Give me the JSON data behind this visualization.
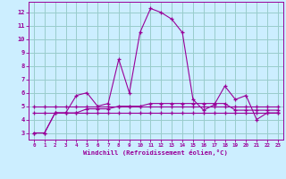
{
  "xlabel": "Windchill (Refroidissement éolien,°C)",
  "bg_color": "#cceeff",
  "grid_color": "#99cccc",
  "line_color": "#990099",
  "x_values": [
    0,
    1,
    2,
    3,
    4,
    5,
    6,
    7,
    8,
    9,
    10,
    11,
    12,
    13,
    14,
    15,
    16,
    17,
    18,
    19,
    20,
    21,
    22,
    23
  ],
  "y_series1": [
    3.0,
    3.0,
    4.5,
    4.5,
    5.8,
    6.0,
    5.0,
    5.2,
    8.5,
    6.0,
    10.5,
    12.3,
    12.0,
    11.5,
    10.5,
    5.5,
    4.7,
    5.1,
    6.5,
    5.5,
    5.8,
    4.0,
    4.5,
    4.5
  ],
  "y_series2": [
    4.5,
    4.5,
    4.5,
    4.5,
    4.5,
    4.5,
    4.5,
    4.5,
    4.5,
    4.5,
    4.5,
    4.5,
    4.5,
    4.5,
    4.5,
    4.5,
    4.5,
    4.5,
    4.5,
    4.5,
    4.5,
    4.5,
    4.5,
    4.5
  ],
  "y_series3": [
    3.0,
    3.0,
    4.5,
    4.5,
    4.5,
    4.8,
    4.8,
    4.8,
    5.0,
    5.0,
    5.0,
    5.2,
    5.2,
    5.2,
    5.2,
    5.2,
    5.2,
    5.2,
    5.2,
    4.7,
    4.7,
    4.7,
    4.7,
    4.7
  ],
  "y_series4": [
    5.0,
    5.0,
    5.0,
    5.0,
    5.0,
    5.0,
    5.0,
    5.0,
    5.0,
    5.0,
    5.0,
    5.0,
    5.0,
    5.0,
    5.0,
    5.0,
    5.0,
    5.0,
    5.0,
    5.0,
    5.0,
    5.0,
    5.0,
    5.0
  ],
  "ylim": [
    2.5,
    12.8
  ],
  "yticks": [
    3,
    4,
    5,
    6,
    7,
    8,
    9,
    10,
    11,
    12
  ],
  "xlim": [
    -0.5,
    23.5
  ],
  "xticks": [
    0,
    1,
    2,
    3,
    4,
    5,
    6,
    7,
    8,
    9,
    10,
    11,
    12,
    13,
    14,
    15,
    16,
    17,
    18,
    19,
    20,
    21,
    22,
    23
  ]
}
